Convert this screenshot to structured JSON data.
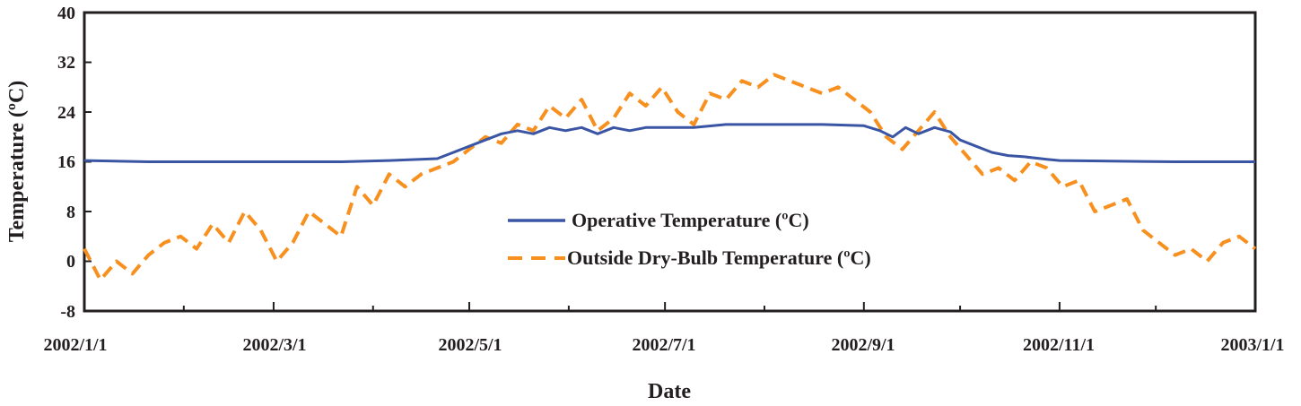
{
  "chart_data": {
    "type": "line",
    "title": "",
    "xlabel": "Date",
    "ylabel": "Temperature (ºC)",
    "ylim": [
      -8,
      40
    ],
    "yticks": [
      -8,
      0,
      8,
      16,
      24,
      32,
      40
    ],
    "ytick_labels": [
      "-8",
      "0",
      "8",
      "16",
      "24",
      "32",
      "40"
    ],
    "xlim_day": [
      0,
      365
    ],
    "xtick_labels": [
      "2002/1/1",
      "2002/3/1",
      "2002/5/1",
      "2002/7/1",
      "2002/9/1",
      "2002/11/1",
      "2003/1/1"
    ],
    "xtick_days": [
      0,
      59,
      120,
      181,
      243,
      304,
      365
    ],
    "xminor_days": [
      31,
      90,
      151,
      212,
      273,
      334
    ],
    "legend_position": "center",
    "series": [
      {
        "name": "Operative Temperature (ºC)",
        "color": "#3a55a4",
        "style": "solid",
        "x_day": [
          0,
          20,
          59,
          80,
          95,
          110,
          120,
          125,
          130,
          135,
          140,
          145,
          150,
          155,
          160,
          165,
          170,
          175,
          181,
          190,
          200,
          212,
          230,
          243,
          248,
          252,
          256,
          260,
          265,
          270,
          273,
          278,
          283,
          288,
          293,
          300,
          304,
          320,
          340,
          365
        ],
        "values": [
          16.2,
          16,
          16,
          16,
          16.2,
          16.5,
          18.5,
          19.5,
          20.5,
          21,
          20.5,
          21.5,
          21,
          21.5,
          20.5,
          21.5,
          21,
          21.5,
          21.5,
          21.5,
          22,
          22,
          22,
          21.8,
          21,
          20,
          21.5,
          20.5,
          21.5,
          20.8,
          19.5,
          18.5,
          17.5,
          17,
          16.8,
          16.4,
          16.2,
          16.1,
          16,
          16
        ]
      },
      {
        "name": "Outside Dry-Bulb Temperature (ºC)",
        "color": "#f7901e",
        "style": "dashed",
        "x_day": [
          0,
          5,
          10,
          15,
          20,
          25,
          30,
          35,
          40,
          45,
          50,
          55,
          60,
          65,
          70,
          75,
          80,
          85,
          90,
          95,
          100,
          105,
          110,
          115,
          120,
          125,
          130,
          135,
          140,
          145,
          150,
          155,
          160,
          165,
          170,
          175,
          180,
          185,
          190,
          195,
          200,
          205,
          210,
          215,
          220,
          225,
          230,
          235,
          240,
          245,
          250,
          255,
          260,
          265,
          270,
          275,
          280,
          285,
          290,
          295,
          300,
          305,
          310,
          315,
          320,
          325,
          330,
          335,
          340,
          345,
          350,
          355,
          360,
          365
        ],
        "values": [
          2,
          -3,
          0,
          -2,
          1,
          3,
          4,
          2,
          6,
          3,
          8,
          5,
          0,
          3,
          8,
          6,
          4,
          12,
          9,
          14,
          12,
          14,
          15,
          16,
          18,
          20,
          19,
          22,
          21,
          25,
          23,
          26,
          21,
          23,
          27,
          25,
          28,
          24,
          22,
          27,
          26,
          29,
          28,
          30,
          29,
          28,
          27,
          28,
          26,
          24,
          20,
          18,
          21,
          24,
          20,
          17,
          14,
          15,
          13,
          16,
          15,
          12,
          13,
          8,
          9,
          10,
          5,
          3,
          1,
          2,
          0,
          3,
          4,
          2
        ]
      }
    ]
  }
}
